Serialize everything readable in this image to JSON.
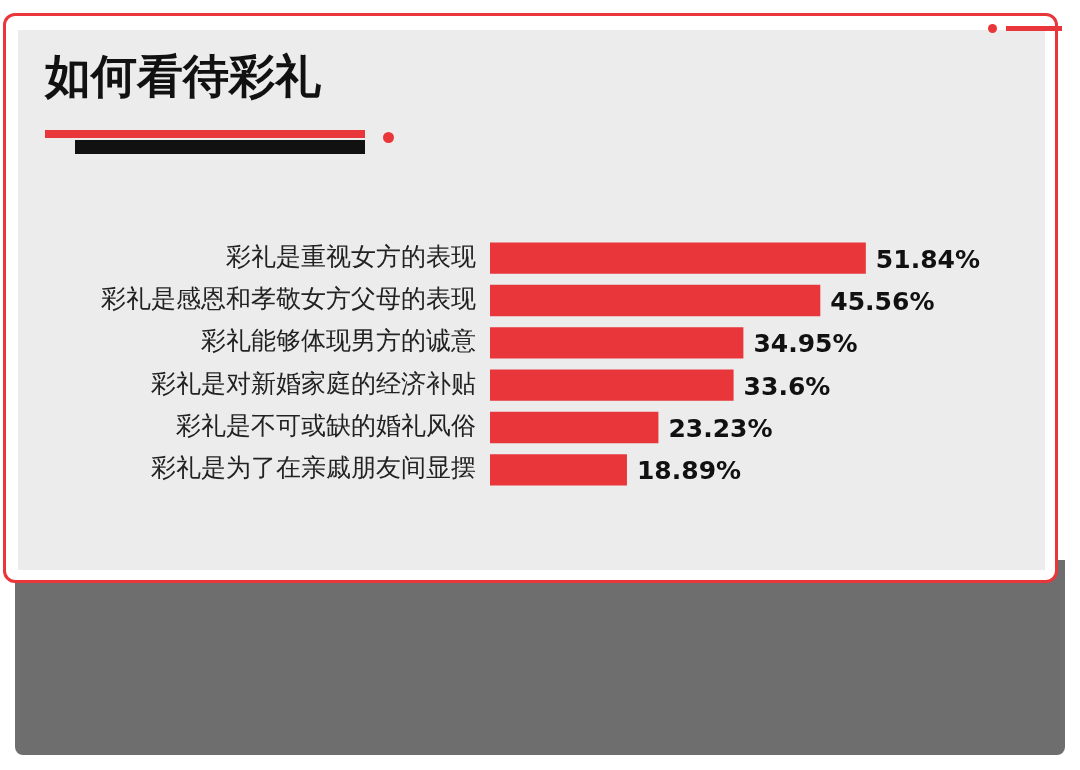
{
  "chart_data": {
    "type": "bar",
    "orientation": "horizontal",
    "title": "如何看待彩礼",
    "categories": [
      "彩礼是重视女方的表现",
      "彩礼是感恩和孝敬女方父母的表现",
      "彩礼能够体现男方的诚意",
      "彩礼是对新婚家庭的经济补贴",
      "彩礼是不可或缺的婚礼风俗",
      "彩礼是为了在亲戚朋友间显摆"
    ],
    "values": [
      51.84,
      45.56,
      34.95,
      33.6,
      23.23,
      18.89
    ],
    "value_labels": [
      "51.84%",
      "45.56%",
      "34.95%",
      "33.6%",
      "23.23%",
      "18.89%"
    ],
    "color": "#e8363b",
    "grid": false,
    "legend": false
  }
}
